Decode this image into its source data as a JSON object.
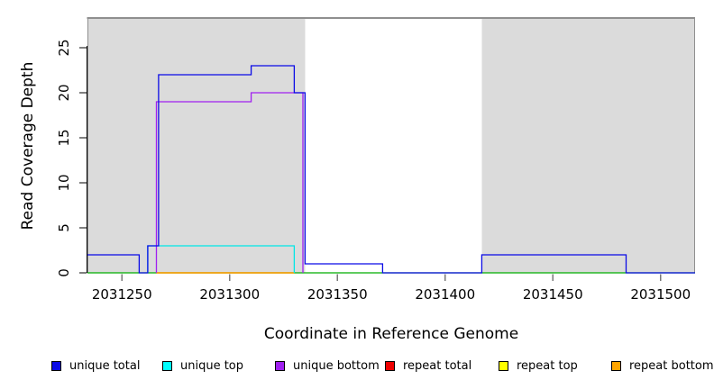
{
  "chart_data": {
    "type": "line",
    "subtype": "step-coverage",
    "title": "",
    "xlabel": "Coordinate in Reference Genome",
    "ylabel": "Read Coverage Depth",
    "xlim": [
      2031234,
      2031516
    ],
    "ylim": [
      0,
      28.3
    ],
    "grid": false,
    "x_ticks": [
      2031250,
      2031300,
      2031350,
      2031400,
      2031450,
      2031500
    ],
    "y_ticks": [
      0,
      5,
      10,
      15,
      20,
      25
    ],
    "y_tick_labels_rotated": true,
    "colors": {
      "shaded_region": "#dbdbdb",
      "region_border": "#8f8f8f",
      "axis": "#000000",
      "x_tick": "#7a7a7a",
      "baseline_annotation": "#00ae00"
    },
    "shaded_regions": [
      {
        "name": "masked-region-left",
        "x1": 2031234,
        "x2": 2031335
      },
      {
        "name": "masked-region-right",
        "x1": 2031417,
        "x2": 2031516
      }
    ],
    "series": [
      {
        "name": "baseline annotation",
        "color": "#00ae00",
        "in_legend": false,
        "points": [
          [
            2031234,
            0
          ],
          [
            2031516,
            0
          ]
        ]
      },
      {
        "name": "repeat total",
        "color": "#e60000",
        "in_legend": true,
        "points": [
          [
            2031266,
            0
          ],
          [
            2031330,
            0
          ]
        ]
      },
      {
        "name": "repeat top",
        "color": "#ffff00",
        "in_legend": true,
        "points": [
          [
            2031266,
            0
          ],
          [
            2031330,
            0
          ]
        ]
      },
      {
        "name": "repeat bottom",
        "color": "#ff9d00",
        "in_legend": true,
        "points": [
          [
            2031266,
            0
          ],
          [
            2031330,
            0
          ]
        ]
      },
      {
        "name": "unique top",
        "color": "#00e6e6",
        "in_legend": true,
        "points": [
          [
            2031262,
            0
          ],
          [
            2031262,
            3
          ],
          [
            2031330,
            3
          ],
          [
            2031330,
            0
          ]
        ]
      },
      {
        "name": "unique bottom",
        "color": "#a020f0",
        "in_legend": true,
        "points": [
          [
            2031266,
            0
          ],
          [
            2031266,
            19
          ],
          [
            2031310,
            19
          ],
          [
            2031310,
            20
          ],
          [
            2031334,
            20
          ],
          [
            2031334,
            0
          ]
        ]
      },
      {
        "name": "unique total",
        "color": "#0b0be6",
        "in_legend": true,
        "points": [
          [
            2031234,
            2
          ],
          [
            2031258,
            2
          ],
          [
            2031258,
            0
          ],
          [
            2031262,
            0
          ],
          [
            2031262,
            3
          ],
          [
            2031267,
            3
          ],
          [
            2031267,
            22
          ],
          [
            2031310,
            22
          ],
          [
            2031310,
            23
          ],
          [
            2031330,
            23
          ],
          [
            2031330,
            20
          ],
          [
            2031335,
            20
          ],
          [
            2031335,
            1
          ],
          [
            2031371,
            1
          ],
          [
            2031371,
            0
          ],
          [
            2031417,
            0
          ],
          [
            2031417,
            2
          ],
          [
            2031484,
            2
          ],
          [
            2031484,
            0
          ],
          [
            2031516,
            0
          ]
        ]
      }
    ],
    "legend_position": "bottom"
  },
  "legend": {
    "items": [
      {
        "label": "unique total",
        "color": "#0b0be6"
      },
      {
        "label": "unique top",
        "color": "#00ffff"
      },
      {
        "label": "unique bottom",
        "color": "#a020f0"
      },
      {
        "label": "repeat total",
        "color": "#ee0000"
      },
      {
        "label": "repeat top",
        "color": "#ffff00"
      },
      {
        "label": "repeat bottom",
        "color": "#ffa500"
      }
    ]
  }
}
